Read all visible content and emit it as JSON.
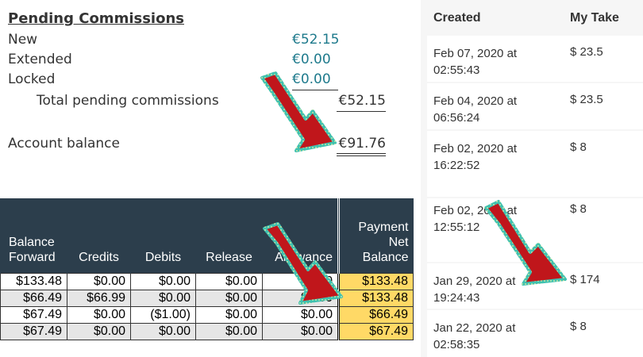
{
  "pending": {
    "title": "Pending Commissions",
    "rows": [
      {
        "label": "New",
        "value": "€52.15"
      },
      {
        "label": "Extended",
        "value": "€0.00"
      },
      {
        "label": "Locked",
        "value": "€0.00"
      }
    ],
    "total_label": "Total pending commissions",
    "total_value": "€52.15",
    "balance_label": "Account balance",
    "balance_value": "€91.76"
  },
  "history": {
    "headers": {
      "created": "Created",
      "take": "My Take"
    },
    "rows": [
      {
        "created": "Feb 07, 2020 at 02:55:43",
        "take": "$ 23.5"
      },
      {
        "created": "Feb 04, 2020 at 06:56:24",
        "take": "$ 23.5"
      },
      {
        "created": "Feb 02, 2020 at 16:22:52",
        "take": "$ 8"
      },
      {
        "created": "Feb 02, 2020 at 12:55:12",
        "take": "$ 8"
      },
      {
        "created": "Jan 29, 2020 at 19:24:43",
        "take": "$ 174"
      },
      {
        "created": "Jan 22, 2020 at 02:58:35",
        "take": "$ 8"
      }
    ]
  },
  "ledger": {
    "headers": [
      "Balance Forward",
      "Credits",
      "Debits",
      "Release",
      "Allowance",
      "Payment Net Balance"
    ],
    "rows": [
      [
        "$133.48",
        "$0.00",
        "$0.00",
        "$0.00",
        "$0.00",
        "$133.48"
      ],
      [
        "$66.49",
        "$66.99",
        "$0.00",
        "$0.00",
        "$0.00",
        "$133.48"
      ],
      [
        "$67.49",
        "$0.00",
        "($1.00)",
        "$0.00",
        "$0.00",
        "$66.49"
      ],
      [
        "$67.49",
        "$0.00",
        "$0.00",
        "$0.00",
        "$0.00",
        "$67.49"
      ]
    ]
  },
  "colors": {
    "accent_value": "#1e7a8c",
    "table_header": "#2c3e4c",
    "highlight_column": "#ffd966",
    "arrow_fill": "#c0161b",
    "arrow_outline": "#3fc1b0"
  },
  "annotations": [
    "red-arrow",
    "red-arrow",
    "red-arrow"
  ]
}
